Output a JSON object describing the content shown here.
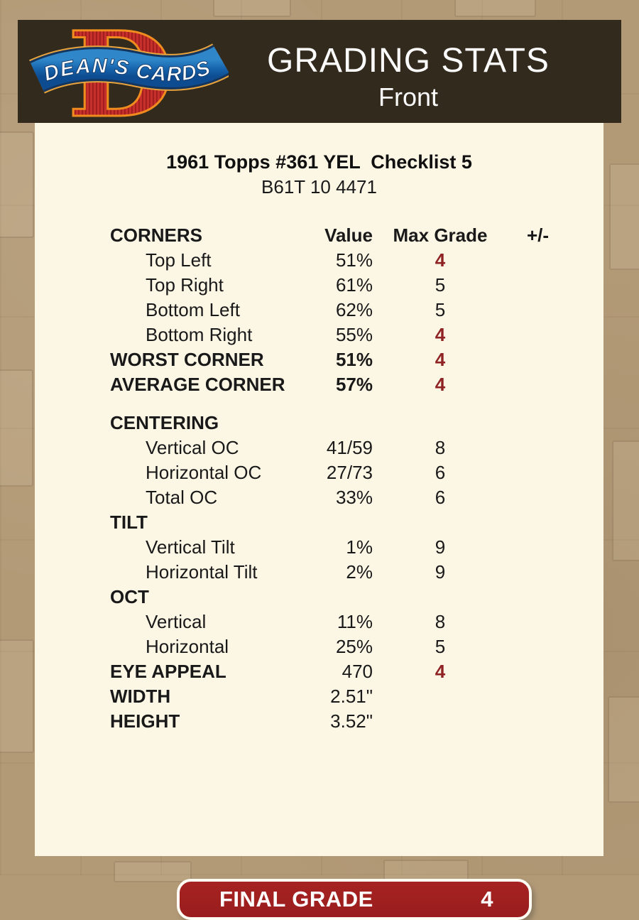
{
  "header": {
    "title": "GRADING STATS",
    "subtitle": "Front",
    "logo_text": "DEAN'S CARDS",
    "logo_letter": "D"
  },
  "card": {
    "title": "1961 Topps #361 YEL  Checklist 5",
    "code": "B61T 10 4471"
  },
  "table": {
    "head": {
      "label": "CORNERS",
      "value": "Value",
      "grade": "Max Grade",
      "pm": "+/-"
    },
    "rows": [
      {
        "label": "Top Left",
        "indent": true,
        "value": "51%",
        "grade": "4",
        "gradeRed": true
      },
      {
        "label": "Top Right",
        "indent": true,
        "value": "61%",
        "grade": "5"
      },
      {
        "label": "Bottom Left",
        "indent": true,
        "value": "62%",
        "grade": "5"
      },
      {
        "label": "Bottom Right",
        "indent": true,
        "value": "55%",
        "grade": "4",
        "gradeRed": true
      },
      {
        "label": "WORST CORNER",
        "bold": true,
        "value": "51%",
        "valueBold": true,
        "grade": "4",
        "gradeRed": true
      },
      {
        "label": "AVERAGE CORNER",
        "bold": true,
        "value": "57%",
        "valueBold": true,
        "grade": "4",
        "gradeRed": true
      },
      {
        "label": "CENTERING",
        "bold": true,
        "sectionGap": true
      },
      {
        "label": "Vertical OC",
        "indent": true,
        "value": "41/59",
        "grade": "8"
      },
      {
        "label": "Horizontal OC",
        "indent": true,
        "value": "27/73",
        "grade": "6"
      },
      {
        "label": "Total OC",
        "indent": true,
        "value": "33%",
        "grade": "6"
      },
      {
        "label": "TILT",
        "bold": true
      },
      {
        "label": "Vertical Tilt",
        "indent": true,
        "value": "1%",
        "grade": "9"
      },
      {
        "label": "Horizontal Tilt",
        "indent": true,
        "value": "2%",
        "grade": "9"
      },
      {
        "label": "OCT",
        "bold": true
      },
      {
        "label": "Vertical",
        "indent": true,
        "value": "11%",
        "grade": "8"
      },
      {
        "label": "Horizontal",
        "indent": true,
        "value": "25%",
        "grade": "5"
      },
      {
        "label": "EYE APPEAL",
        "bold": true,
        "value": "470",
        "grade": "4",
        "gradeRed": true
      },
      {
        "label": "WIDTH",
        "bold": true,
        "value": "2.51\""
      },
      {
        "label": "HEIGHT",
        "bold": true,
        "value": "3.52\""
      }
    ]
  },
  "final": {
    "label": "FINAL GRADE",
    "grade": "4"
  },
  "colors": {
    "background_tan": "#b39a77",
    "header_brown": "#332a1e",
    "panel_cream": "#fcf6e5",
    "grade_red": "#8f2323",
    "button_red": "#9a1d1d",
    "logo_red": "#c5302c",
    "logo_orange": "#f08c1e",
    "logo_blue": "#1663ab"
  }
}
